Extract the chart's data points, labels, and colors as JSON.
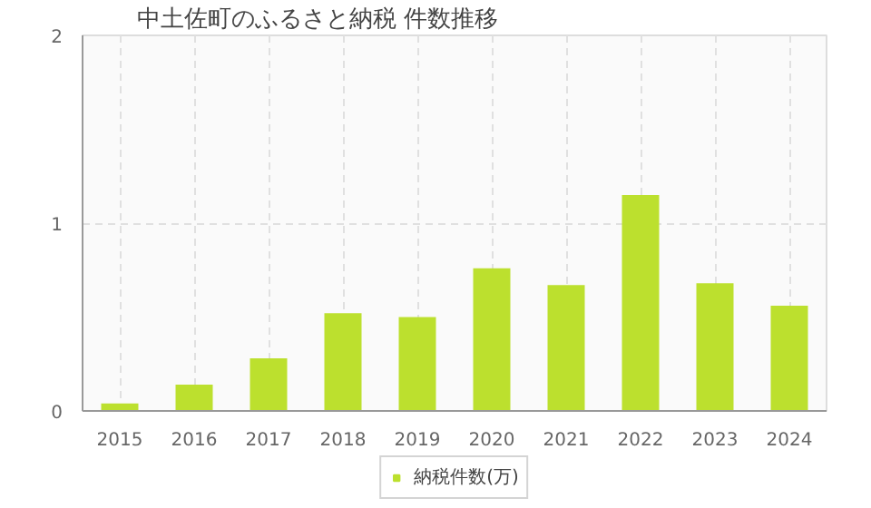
{
  "chart_data": {
    "type": "bar",
    "title": "中土佐町のふるさと納税  件数推移",
    "categories": [
      "2015",
      "2016",
      "2017",
      "2018",
      "2019",
      "2020",
      "2021",
      "2022",
      "2023",
      "2024"
    ],
    "series": [
      {
        "name": "納税件数(万)",
        "color": "#bce02e",
        "values": [
          0.04,
          0.14,
          0.28,
          0.52,
          0.5,
          0.76,
          0.67,
          1.15,
          0.68,
          0.56
        ]
      }
    ],
    "ylim": [
      0,
      2
    ],
    "yticks": [
      0,
      1,
      2
    ],
    "grid": true,
    "legend": "bottom"
  }
}
